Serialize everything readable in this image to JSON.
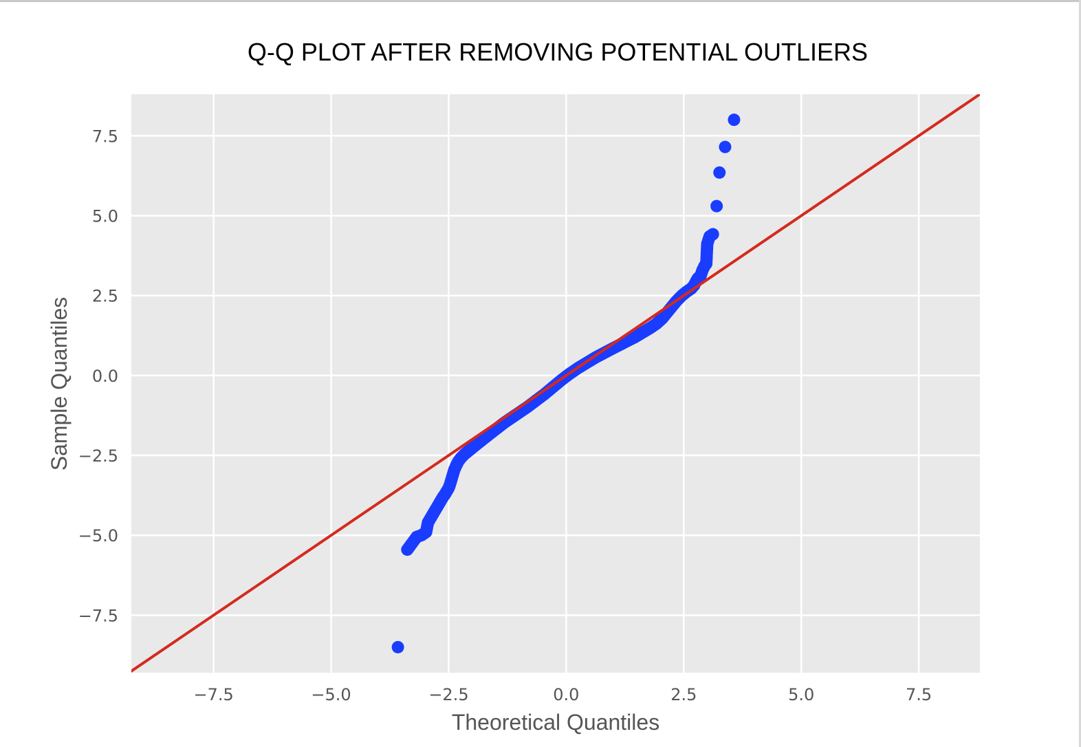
{
  "chart_data": {
    "type": "scatter",
    "title": "Q-Q PLOT AFTER REMOVING POTENTIAL OUTLIERS",
    "xlabel": "Theoretical Quantiles",
    "ylabel": "Sample Quantiles",
    "xlim": [
      -9.25,
      8.8
    ],
    "ylim": [
      -9.3,
      8.8
    ],
    "xticks": [
      -7.5,
      -5.0,
      -2.5,
      0.0,
      2.5,
      5.0,
      7.5
    ],
    "xtick_labels": [
      "−7.5",
      "−5.0",
      "−2.5",
      "0.0",
      "2.5",
      "5.0",
      "7.5"
    ],
    "yticks": [
      7.5,
      5.0,
      2.5,
      0.0,
      -2.5,
      -5.0,
      -7.5
    ],
    "ytick_labels": [
      "7.5",
      "5.0",
      "2.5",
      "0.0",
      "−2.5",
      "−5.0",
      "−7.5"
    ],
    "grid": true,
    "background": "#e9e9e9",
    "point_color": "#1a3cff",
    "line_color": "#d42a1e",
    "reference_line": {
      "slope": 1,
      "intercept": 0
    },
    "series": [
      {
        "values": [
          [
            -3.58,
            -8.5
          ],
          [
            -3.38,
            -5.45
          ],
          [
            -3.33,
            -5.35
          ],
          [
            -3.28,
            -5.25
          ],
          [
            -3.18,
            -5.05
          ],
          [
            -3.08,
            -5.0
          ],
          [
            -2.98,
            -4.9
          ],
          [
            -2.96,
            -4.75
          ],
          [
            -2.94,
            -4.6
          ],
          [
            -2.9,
            -4.5
          ],
          [
            -2.86,
            -4.4
          ],
          [
            -2.82,
            -4.3
          ],
          [
            -2.78,
            -4.2
          ],
          [
            -2.74,
            -4.1
          ],
          [
            -2.7,
            -4.0
          ],
          [
            -2.66,
            -3.9
          ],
          [
            -2.62,
            -3.8
          ],
          [
            -2.58,
            -3.72
          ],
          [
            -2.54,
            -3.62
          ],
          [
            -2.5,
            -3.52
          ],
          [
            -2.47,
            -3.4
          ],
          [
            -2.44,
            -3.25
          ],
          [
            -2.41,
            -3.1
          ],
          [
            -2.38,
            -2.95
          ],
          [
            -2.34,
            -2.82
          ],
          [
            -2.3,
            -2.7
          ],
          [
            -2.24,
            -2.58
          ],
          [
            -2.16,
            -2.46
          ],
          [
            -2.06,
            -2.34
          ],
          [
            -1.96,
            -2.22
          ],
          [
            -1.84,
            -2.08
          ],
          [
            -1.72,
            -1.94
          ],
          [
            -1.6,
            -1.8
          ],
          [
            -1.46,
            -1.64
          ],
          [
            -1.32,
            -1.48
          ],
          [
            -1.16,
            -1.32
          ],
          [
            -1.0,
            -1.16
          ],
          [
            -0.82,
            -0.98
          ],
          [
            -0.64,
            -0.78
          ],
          [
            -0.46,
            -0.58
          ],
          [
            -0.28,
            -0.36
          ],
          [
            -0.1,
            -0.14
          ],
          [
            0.08,
            0.06
          ],
          [
            0.26,
            0.24
          ],
          [
            0.44,
            0.4
          ],
          [
            0.62,
            0.56
          ],
          [
            0.8,
            0.7
          ],
          [
            0.98,
            0.84
          ],
          [
            1.14,
            0.96
          ],
          [
            1.3,
            1.08
          ],
          [
            1.46,
            1.2
          ],
          [
            1.62,
            1.34
          ],
          [
            1.78,
            1.48
          ],
          [
            1.92,
            1.62
          ],
          [
            2.04,
            1.78
          ],
          [
            2.14,
            1.96
          ],
          [
            2.24,
            2.14
          ],
          [
            2.34,
            2.32
          ],
          [
            2.46,
            2.5
          ],
          [
            2.56,
            2.62
          ],
          [
            2.66,
            2.72
          ],
          [
            2.72,
            2.82
          ],
          [
            2.76,
            2.94
          ],
          [
            2.8,
            3.04
          ],
          [
            2.86,
            3.12
          ],
          [
            2.9,
            3.3
          ],
          [
            2.94,
            3.42
          ],
          [
            2.98,
            3.5
          ],
          [
            3.0,
            4.12
          ],
          [
            3.05,
            4.35
          ],
          [
            3.12,
            4.42
          ],
          [
            3.2,
            5.3
          ],
          [
            3.26,
            6.35
          ],
          [
            3.38,
            7.15
          ],
          [
            3.57,
            8.0
          ]
        ]
      }
    ]
  }
}
